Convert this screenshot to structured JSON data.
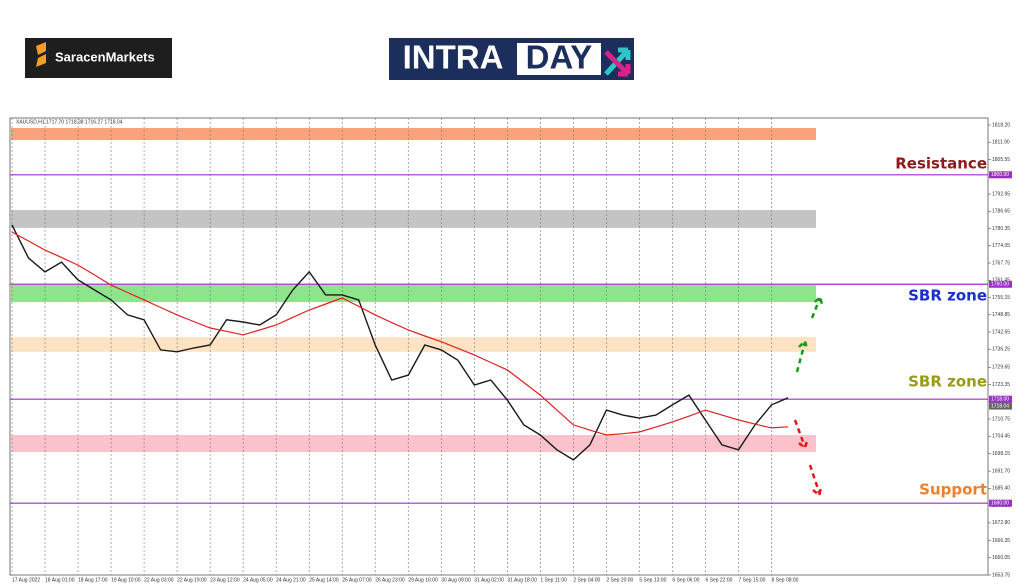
{
  "header": {
    "brand": "SaracenMarkets",
    "title_left": "INTRA",
    "title_right": "DAY"
  },
  "chart_data": {
    "type": "line",
    "symbol_info": "XAUUSD,H1  1717.70 1718.38 1716.27 1718.04",
    "categories": [
      "17 Aug 2022",
      null,
      "18 Aug 01:00",
      null,
      "18 Aug 17:00",
      null,
      "19 Aug 10:00",
      null,
      "22 Aug 03:00",
      null,
      "22 Aug 19:00",
      null,
      "23 Aug 12:00",
      null,
      "24 Aug 05:00",
      null,
      "24 Aug 21:00",
      null,
      "25 Aug 14:00",
      null,
      "26 Aug 07:00",
      null,
      "26 Aug 23:00",
      null,
      "29 Aug 16:00",
      null,
      "30 Aug 09:00",
      null,
      "31 Aug 02:00",
      null,
      "31 Aug 18:00",
      null,
      "1 Sep 11:00",
      null,
      "2 Sep 04:00",
      null,
      "2 Sep 20:00",
      null,
      "5 Sep 13:00",
      null,
      "6 Sep 06:00",
      null,
      "6 Sep 22:00",
      null,
      "7 Sep 15:00",
      null,
      "8 Sep 08:00",
      null
    ],
    "series": [
      {
        "name": "XAUUSD",
        "color": "#1a1a1a",
        "values": [
          1781.7,
          1769.6,
          1764.5,
          1768.1,
          1761.6,
          1757.9,
          1754.3,
          1748.8,
          1747.0,
          1736.0,
          1735.3,
          1736.7,
          1737.8,
          1747.0,
          1746.2,
          1745.1,
          1748.8,
          1757.9,
          1764.5,
          1756.1,
          1756.1,
          1754.3,
          1737.8,
          1725.0,
          1726.8,
          1737.8,
          1736.0,
          1732.3,
          1723.2,
          1725.0,
          1717.7,
          1708.6,
          1704.9,
          1699.5,
          1695.8,
          1701.3,
          1714.0,
          1712.2,
          1711.1,
          1712.2,
          1715.9,
          1719.5,
          1710.4,
          1701.3,
          1699.5,
          1708.6,
          1715.9,
          1718.5
        ]
      },
      {
        "name": "MA",
        "color": "#e02020",
        "values": [
          1779.1,
          1775.8,
          1772.5,
          1769.8,
          1767.0,
          1763.4,
          1759.7,
          1757.0,
          1754.3,
          1751.5,
          1748.8,
          1746.4,
          1744.0,
          1742.8,
          1741.5,
          1743.3,
          1745.1,
          1747.9,
          1750.6,
          1752.8,
          1755.0,
          1751.9,
          1748.8,
          1746.0,
          1743.3,
          1741.1,
          1739.0,
          1736.6,
          1734.2,
          1731.4,
          1728.7,
          1724.1,
          1719.5,
          1714.0,
          1708.6,
          1706.7,
          1704.9,
          1705.4,
          1706.0,
          1707.8,
          1709.7,
          1711.8,
          1714.0,
          1712.2,
          1710.4,
          1708.9,
          1707.5,
          1707.9
        ]
      }
    ],
    "ylim": [
      1653.75,
      1818.2
    ],
    "yticks": [
      {
        "value": 1818.2,
        "label": "1818.20"
      },
      {
        "value": 1811.9,
        "label": "1811.90"
      },
      1805.55,
      1799.25,
      1792.95,
      1786.65,
      1780.35,
      1774.05,
      1767.75,
      1761.45,
      1755.15,
      1748.85,
      1742.55,
      1736.25,
      1729.65,
      1723.35,
      1717.05,
      1710.75,
      1704.45,
      1698.15,
      {
        "value": 1691.7,
        "label": "1691.70"
      },
      {
        "value": 1685.4,
        "label": "1685.40"
      },
      {
        "value": 1679.1,
        "label": "1679.10"
      },
      {
        "value": 1672.8,
        "label": "1672.80"
      },
      1666.35,
      1660.05,
      1653.75
    ],
    "levels": [
      {
        "value": 1800,
        "label": "1800.00"
      },
      {
        "value": 1760,
        "label": "1760.00"
      },
      {
        "value": 1718,
        "label": "1718.00"
      },
      {
        "value": 1680,
        "label": "1680.00"
      }
    ],
    "current_price": {
      "value": 1718.04,
      "label": "1718.04"
    },
    "zones": [
      {
        "from": 1812.7,
        "to": 1817.1,
        "color": "#f9a27c"
      },
      {
        "from": 1780.6,
        "to": 1787.1,
        "color": "#c4c4c4"
      },
      {
        "from": 1753.5,
        "to": 1759.7,
        "color": "#8ee48a"
      },
      {
        "from": 1735.3,
        "to": 1740.7,
        "color": "#fde3c4"
      },
      {
        "from": 1698.7,
        "to": 1704.9,
        "color": "#fbc2cc"
      }
    ],
    "annotations": [
      {
        "text": "Resistance",
        "color": "#8b1a1a"
      },
      {
        "text": "SBR zone",
        "color": "#1a2fd0"
      },
      {
        "text": "SBR zone",
        "color": "#9a9a1a"
      },
      {
        "text": "Support",
        "color": "#f07f2a"
      }
    ],
    "grid": true
  }
}
